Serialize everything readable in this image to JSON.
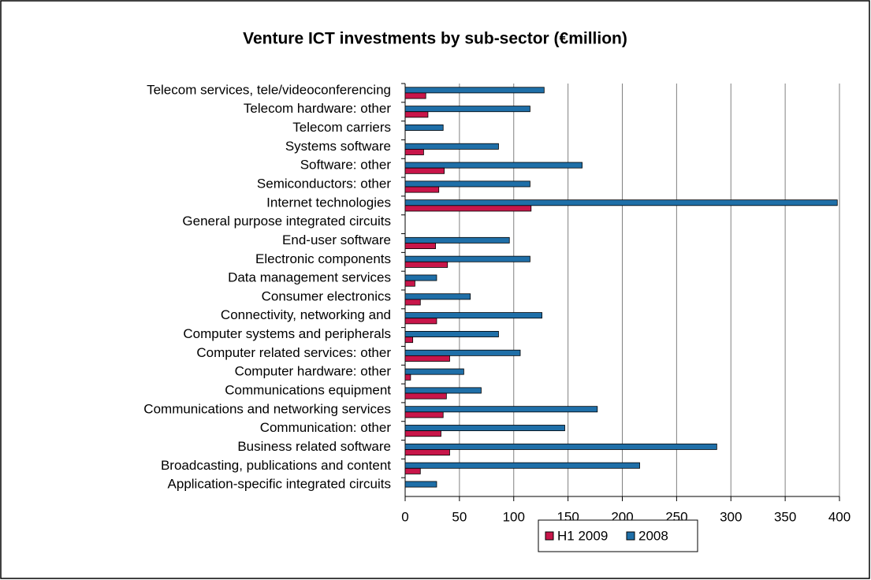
{
  "chart_data": {
    "type": "hbar",
    "title": "Venture ICT investments by sub-sector (€million)",
    "categories": [
      "Telecom services, tele/videoconferencing",
      "Telecom hardware: other",
      "Telecom carriers",
      "Systems  software",
      "Software: other",
      "Semiconductors: other",
      "Internet technologies",
      "General purpose integrated circuits",
      "End-user software",
      "Electronic components",
      "Data management services",
      "Consumer electronics",
      "Connectivity, networking and",
      "Computer systems and peripherals",
      "Computer related services: other",
      "Computer hardware: other",
      "Communications equipment",
      "Communications and networking services",
      "Communication: other",
      "Business related software",
      "Broadcasting, publications and content",
      "Application-specific integrated circuits"
    ],
    "series": [
      {
        "name": "H1 2009",
        "color": "#c8164a",
        "values": [
          19,
          21,
          0,
          17,
          36,
          31,
          116,
          0,
          28,
          39,
          9,
          14,
          29,
          7,
          41,
          5,
          38,
          35,
          33,
          41,
          14,
          0
        ]
      },
      {
        "name": "2008",
        "color": "#1f6fa8",
        "values": [
          128,
          115,
          35,
          86,
          163,
          115,
          398,
          0,
          96,
          115,
          29,
          60,
          126,
          86,
          106,
          54,
          70,
          177,
          147,
          287,
          216,
          29
        ]
      }
    ],
    "xlim": [
      0,
      400
    ],
    "xticks": [
      0,
      50,
      100,
      150,
      200,
      250,
      300,
      350,
      400
    ],
    "grid": true,
    "legend": "bottom"
  }
}
